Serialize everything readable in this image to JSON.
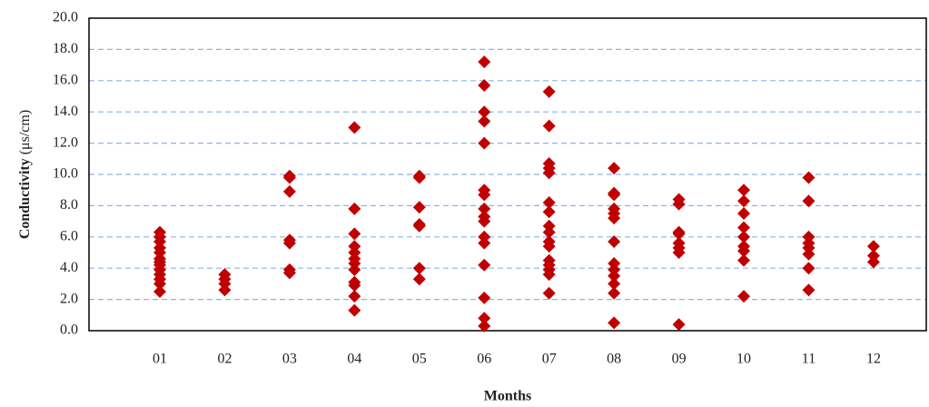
{
  "chart_data": {
    "type": "scatter",
    "ylabel": "Conductivity",
    "ylabel_unit": "(μs/cm)",
    "xlabel": "Months",
    "categories": [
      "01",
      "02",
      "03",
      "04",
      "05",
      "06",
      "07",
      "08",
      "09",
      "10",
      "11",
      "12"
    ],
    "values": [
      [
        6.3,
        6.0,
        5.7,
        5.3,
        5.0,
        4.6,
        4.4,
        4.2,
        3.9,
        3.6,
        3.3,
        3.0,
        2.5
      ],
      [
        3.6,
        3.3,
        3.0,
        2.6
      ],
      [
        9.9,
        9.8,
        8.9,
        5.8,
        5.6,
        3.9,
        3.7
      ],
      [
        13.0,
        7.8,
        6.2,
        5.4,
        5.0,
        4.6,
        4.3,
        3.9,
        3.1,
        2.9,
        2.2,
        1.3
      ],
      [
        9.9,
        9.8,
        7.9,
        6.8,
        6.7,
        4.0,
        3.3
      ],
      [
        17.2,
        15.7,
        14.0,
        13.4,
        12.0,
        9.0,
        8.7,
        7.8,
        7.3,
        7.0,
        6.0,
        5.6,
        4.2,
        2.1,
        0.8,
        0.3
      ],
      [
        15.3,
        13.1,
        10.7,
        10.4,
        10.1,
        8.2,
        7.6,
        6.7,
        6.3,
        5.7,
        5.4,
        4.5,
        4.2,
        3.9,
        3.6,
        2.4
      ],
      [
        10.4,
        8.8,
        8.7,
        7.8,
        7.5,
        7.2,
        5.7,
        4.3,
        3.9,
        3.5,
        3.0,
        2.4,
        0.5
      ],
      [
        8.4,
        8.1,
        6.3,
        6.2,
        5.6,
        5.3,
        5.0,
        0.4
      ],
      [
        9.0,
        8.3,
        7.5,
        6.6,
        6.0,
        5.4,
        5.1,
        4.5,
        2.2
      ],
      [
        9.8,
        8.3,
        6.0,
        5.6,
        5.3,
        4.9,
        4.0,
        2.6
      ],
      [
        5.4,
        4.8,
        4.4
      ]
    ],
    "color": "#c00000",
    "ylim": [
      0,
      20
    ],
    "yticks": [
      {
        "value": 0,
        "label": "0.0"
      },
      {
        "value": 2,
        "label": "2.0"
      },
      {
        "value": 4,
        "label": "4.0"
      },
      {
        "value": 6,
        "label": "6.0"
      },
      {
        "value": 8,
        "label": "8.0"
      },
      {
        "value": 10,
        "label": "10.0"
      },
      {
        "value": 12,
        "label": "12.0"
      },
      {
        "value": 14,
        "label": "14.0"
      },
      {
        "value": 16,
        "label": "16.0"
      },
      {
        "value": 18,
        "label": "18.0"
      },
      {
        "value": 20,
        "label": "20.0"
      }
    ],
    "grid": true
  }
}
